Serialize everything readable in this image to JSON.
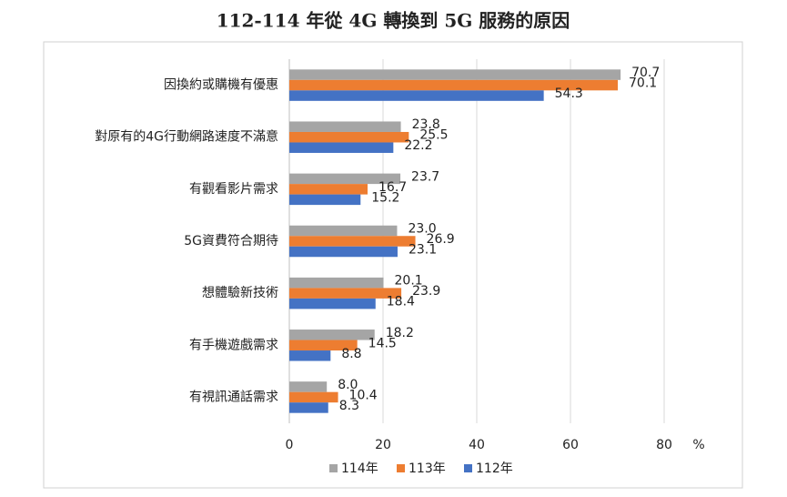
{
  "chart_data": {
    "type": "hbar",
    "title": "112-114 年從 4G 轉換到 5G 服務的原因",
    "categories": [
      "因換約或購機有優惠",
      "對原有的4G行動網路速度不滿意",
      "有觀看影片需求",
      "5G資費符合期待",
      "想體驗新技術",
      "有手機遊戲需求",
      "有視訊通話需求"
    ],
    "series": [
      {
        "name": "114年",
        "color": "#a5a5a5",
        "values": [
          70.7,
          23.8,
          23.7,
          23.0,
          20.1,
          18.2,
          8.0
        ],
        "value_labels": [
          "70.7",
          "23.8",
          "23.7",
          "23.0",
          "20.1",
          "18.2",
          "8.0"
        ]
      },
      {
        "name": "113年",
        "color": "#ed7d31",
        "values": [
          70.1,
          25.5,
          16.7,
          26.9,
          23.9,
          14.5,
          10.4
        ],
        "value_labels": [
          "70.1",
          "25.5",
          "16.7",
          "26.9",
          "23.9",
          "14.5",
          "10.4"
        ]
      },
      {
        "name": "112年",
        "color": "#4472c4",
        "values": [
          54.3,
          22.2,
          15.2,
          23.1,
          18.4,
          8.8,
          8.3
        ],
        "value_labels": [
          "54.3",
          "22.2",
          "15.2",
          "23.1",
          "18.4",
          "8.8",
          "8.3"
        ]
      }
    ],
    "xlabel": "%",
    "xlim": [
      0,
      80
    ],
    "xticks": [
      0,
      20,
      40,
      60,
      80
    ],
    "grid": true,
    "legend": "bottom"
  }
}
